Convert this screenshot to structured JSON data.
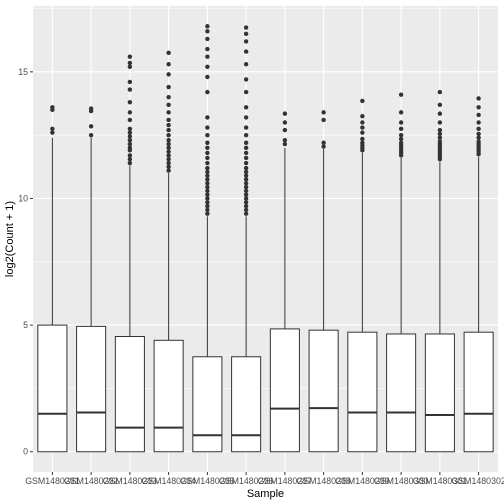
{
  "chart_data": {
    "type": "boxplot",
    "xlabel": "Sample",
    "ylabel": "log2(Count + 1)",
    "ylim": [
      -0.8,
      17.6
    ],
    "y_ticks": [
      0,
      5,
      10,
      15
    ],
    "grid": true,
    "panel_background": "#ebebeb",
    "box_fill": "#ffffff",
    "line_color": "#333333",
    "categories": [
      "GSM1480291",
      "GSM1480292",
      "GSM1480293",
      "GSM1480294",
      "GSM1480295",
      "GSM1480296",
      "GSM1480297",
      "GSM1480298",
      "GSM1480299",
      "GSM1480300",
      "GSM1480301",
      "GSM1480302"
    ],
    "boxes": [
      {
        "min": 0,
        "q1": 0,
        "median": 1.5,
        "q3": 5.0,
        "max": 12.4,
        "outliers": [
          12.6,
          12.75,
          13.5,
          13.6
        ]
      },
      {
        "min": 0,
        "q1": 0,
        "median": 1.55,
        "q3": 4.95,
        "max": 12.4,
        "outliers": [
          12.5,
          12.85,
          13.45,
          13.55
        ]
      },
      {
        "min": 0,
        "q1": 0,
        "median": 0.95,
        "q3": 4.55,
        "max": 11.3,
        "outliers": [
          11.4,
          11.55,
          11.7,
          11.9,
          12.0,
          12.15,
          12.3,
          12.45,
          12.6,
          12.75,
          13.1,
          13.4,
          13.8,
          14.3,
          14.6,
          15.2,
          15.35,
          15.6
        ]
      },
      {
        "min": 0,
        "q1": 0,
        "median": 0.95,
        "q3": 4.4,
        "max": 11.0,
        "outliers": [
          11.1,
          11.25,
          11.4,
          11.55,
          11.7,
          11.85,
          12.0,
          12.15,
          12.3,
          12.5,
          12.7,
          12.9,
          13.1,
          13.4,
          13.7,
          14.0,
          14.4,
          14.9,
          15.3,
          15.75
        ]
      },
      {
        "min": 0,
        "q1": 0,
        "median": 0.65,
        "q3": 3.75,
        "max": 9.3,
        "outliers": [
          9.4,
          9.55,
          9.7,
          9.85,
          10.0,
          10.15,
          10.3,
          10.45,
          10.6,
          10.75,
          10.9,
          11.05,
          11.2,
          11.4,
          11.6,
          11.8,
          12.0,
          12.2,
          12.5,
          12.8,
          13.2,
          14.2,
          14.8,
          15.2,
          15.6,
          15.9,
          16.3,
          16.6,
          16.8
        ]
      },
      {
        "min": 0,
        "q1": 0,
        "median": 0.65,
        "q3": 3.75,
        "max": 9.3,
        "outliers": [
          9.4,
          9.55,
          9.7,
          9.85,
          10.0,
          10.15,
          10.3,
          10.45,
          10.6,
          10.75,
          10.9,
          11.05,
          11.2,
          11.4,
          11.6,
          11.8,
          12.0,
          12.2,
          12.5,
          12.8,
          13.2,
          13.6,
          14.2,
          14.7,
          15.3,
          15.8,
          16.2,
          16.5,
          16.75
        ]
      },
      {
        "min": 0,
        "q1": 0,
        "median": 1.7,
        "q3": 4.85,
        "max": 12.0,
        "outliers": [
          12.15,
          12.3,
          12.7,
          13.0,
          13.35
        ]
      },
      {
        "min": 0,
        "q1": 0,
        "median": 1.72,
        "q3": 4.8,
        "max": 11.95,
        "outliers": [
          12.05,
          12.2,
          13.1,
          13.4
        ]
      },
      {
        "min": 0,
        "q1": 0,
        "median": 1.55,
        "q3": 4.72,
        "max": 11.8,
        "outliers": [
          11.9,
          12.0,
          12.1,
          12.2,
          12.35,
          12.6,
          12.8,
          13.0,
          13.25,
          13.85
        ]
      },
      {
        "min": 0,
        "q1": 0,
        "median": 1.55,
        "q3": 4.65,
        "max": 11.6,
        "outliers": [
          11.7,
          11.8,
          11.9,
          12.0,
          12.1,
          12.2,
          12.35,
          12.5,
          12.75,
          13.0,
          13.4,
          14.1
        ]
      },
      {
        "min": 0,
        "q1": 0,
        "median": 1.45,
        "q3": 4.65,
        "max": 11.45,
        "outliers": [
          11.55,
          11.65,
          11.75,
          11.85,
          11.95,
          12.05,
          12.15,
          12.25,
          12.4,
          12.55,
          12.7,
          13.0,
          13.35,
          13.7,
          14.2
        ]
      },
      {
        "min": 0,
        "q1": 0,
        "median": 1.5,
        "q3": 4.72,
        "max": 11.65,
        "outliers": [
          11.75,
          11.85,
          11.95,
          12.05,
          12.15,
          12.25,
          12.4,
          12.55,
          12.75,
          13.0,
          13.3,
          13.6,
          13.95
        ]
      }
    ]
  }
}
